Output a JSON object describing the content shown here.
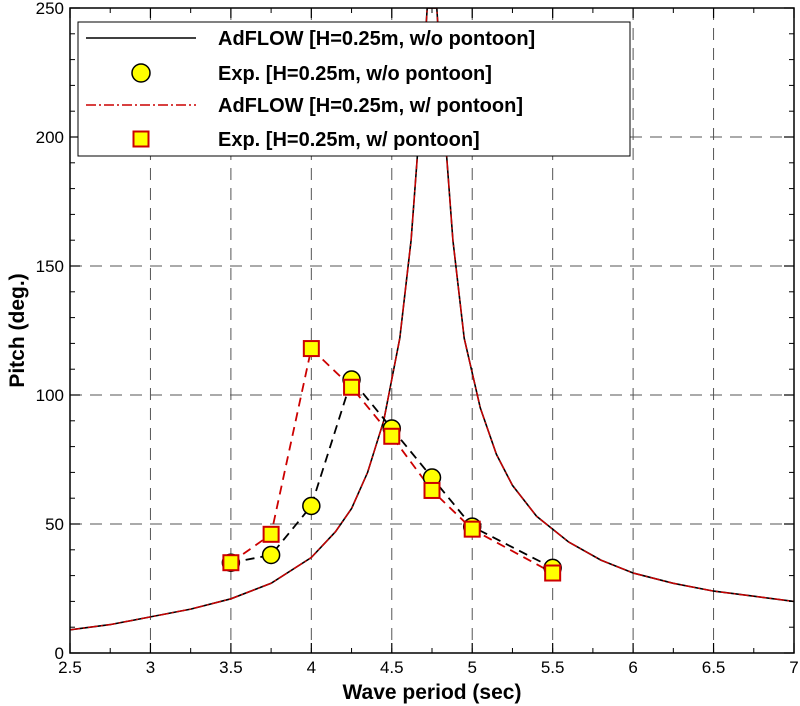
{
  "chart_data": {
    "type": "line",
    "xlabel": "Wave period (sec)",
    "ylabel": "Pitch (deg.)",
    "xlim": [
      2.5,
      7
    ],
    "ylim": [
      0,
      250
    ],
    "xticks": [
      2.5,
      3,
      3.5,
      4,
      4.5,
      5,
      5.5,
      6,
      6.5,
      7
    ],
    "yticks": [
      0,
      50,
      100,
      150,
      200,
      250
    ],
    "xtick_labels": [
      "2.5",
      "3",
      "3.5",
      "4",
      "4.5",
      "5",
      "5.5",
      "6",
      "6.5",
      "7"
    ],
    "ytick_labels": [
      "0",
      "50",
      "100",
      "150",
      "200",
      "250"
    ],
    "grid": true,
    "legend_position": "top-left",
    "series": [
      {
        "name": "AdFLOW [H=0.25m, w/o pontoon]",
        "kind": "line",
        "color": "#000000",
        "x": [
          2.5,
          2.75,
          3.0,
          3.25,
          3.5,
          3.75,
          4.0,
          4.15,
          4.25,
          4.35,
          4.45,
          4.55,
          4.62,
          4.68,
          4.72,
          4.75,
          4.78,
          4.82,
          4.88,
          4.95,
          5.05,
          5.15,
          5.25,
          5.4,
          5.6,
          5.8,
          6.0,
          6.25,
          6.5,
          6.75,
          7.0
        ],
        "y": [
          9,
          11,
          14,
          17,
          21,
          27,
          37,
          47,
          56,
          70,
          90,
          122,
          160,
          210,
          250,
          250,
          250,
          210,
          160,
          122,
          95,
          77,
          65,
          53,
          43,
          36,
          31,
          27,
          24,
          22,
          20
        ]
      },
      {
        "name": "Exp. [H=0.25m, w/o pontoon]",
        "kind": "scatter",
        "marker": "circle",
        "fill": "#ffff00",
        "color": "#000000",
        "x": [
          3.5,
          3.75,
          4.0,
          4.25,
          4.5,
          4.75,
          5.0,
          5.5
        ],
        "y": [
          35,
          38,
          57,
          106,
          87,
          68,
          49,
          33
        ]
      },
      {
        "name": "AdFLOW [H=0.25m, w/ pontoon]",
        "kind": "line",
        "color": "#cc0000",
        "x": [
          2.5,
          2.75,
          3.0,
          3.25,
          3.5,
          3.75,
          4.0,
          4.15,
          4.25,
          4.35,
          4.45,
          4.55,
          4.62,
          4.68,
          4.72,
          4.75,
          4.78,
          4.82,
          4.88,
          4.95,
          5.05,
          5.15,
          5.25,
          5.4,
          5.6,
          5.8,
          6.0,
          6.25,
          6.5,
          6.75,
          7.0
        ],
        "y": [
          9,
          11,
          14,
          17,
          21,
          27,
          37,
          47,
          56,
          70,
          90,
          122,
          160,
          210,
          250,
          250,
          250,
          210,
          160,
          122,
          95,
          77,
          65,
          53,
          43,
          36,
          31,
          27,
          24,
          22,
          20
        ]
      },
      {
        "name": "Exp. [H=0.25m, w/ pontoon]",
        "kind": "scatter",
        "marker": "square",
        "fill": "#ffff00",
        "color": "#cc0000",
        "x": [
          3.5,
          3.75,
          4.0,
          4.25,
          4.5,
          4.75,
          5.0,
          5.5
        ],
        "y": [
          35,
          46,
          118,
          103,
          84,
          63,
          48,
          31
        ]
      }
    ]
  }
}
